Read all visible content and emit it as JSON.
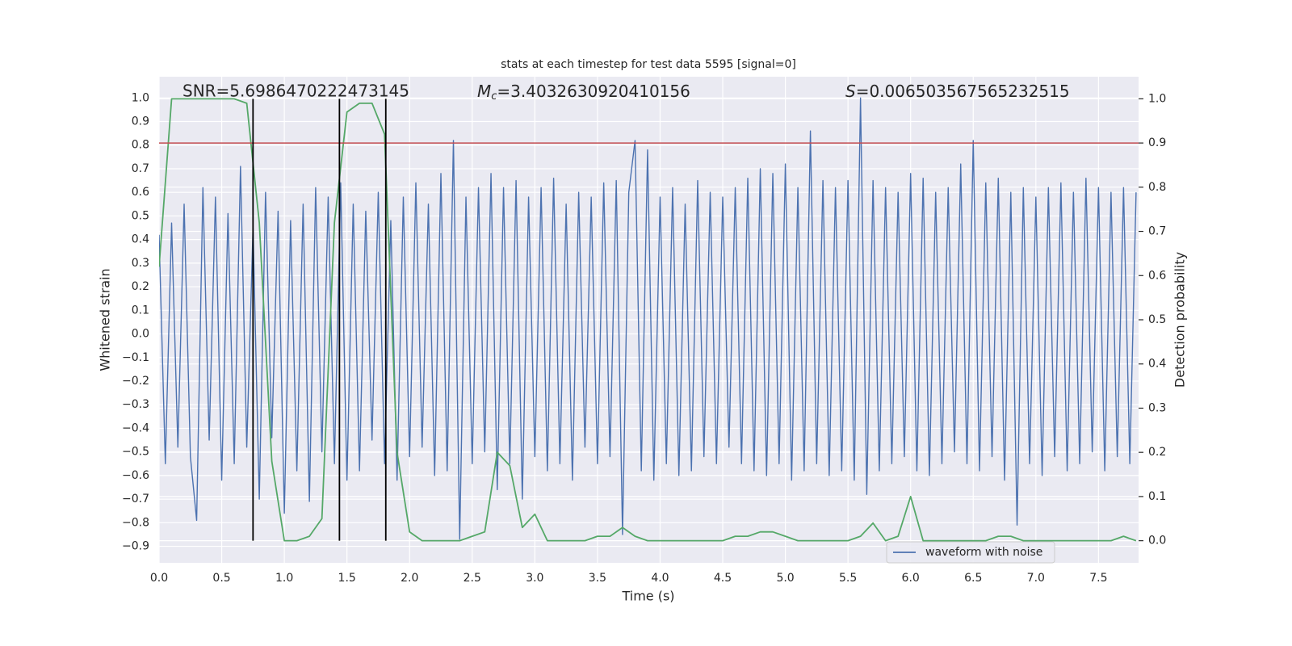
{
  "chart_data": {
    "type": "line",
    "title": "stats at each timestep for test data 5595 [signal=0]",
    "annotations": [
      {
        "text": "SNR=5.6986470222473145"
      },
      {
        "symbol": "M",
        "subscript": "c",
        "text": "=3.4032630920410156"
      },
      {
        "symbol": "S",
        "text": "=0.006503567565232515"
      }
    ],
    "xlabel": "Time (s)",
    "ylabel": "Whitened strain",
    "y2label": "Detection probability",
    "xlim": [
      0,
      7.82
    ],
    "ylim": [
      -0.97,
      1.09
    ],
    "y2lim": [
      -0.05,
      1.05
    ],
    "xticks": [
      {
        "value": 0,
        "label": "0.0"
      },
      {
        "value": 0.5,
        "label": "0.5"
      },
      {
        "value": 1,
        "label": "1.0"
      },
      {
        "value": 1.5,
        "label": "1.5"
      },
      {
        "value": 2,
        "label": "2.0"
      },
      {
        "value": 2.5,
        "label": "2.5"
      },
      {
        "value": 3,
        "label": "3.0"
      },
      {
        "value": 3.5,
        "label": "3.5"
      },
      {
        "value": 4,
        "label": "4.0"
      },
      {
        "value": 4.5,
        "label": "4.5"
      },
      {
        "value": 5,
        "label": "5.0"
      },
      {
        "value": 5.5,
        "label": "5.5"
      },
      {
        "value": 6,
        "label": "6.0"
      },
      {
        "value": 6.5,
        "label": "6.5"
      },
      {
        "value": 7,
        "label": "7.0"
      },
      {
        "value": 7.5,
        "label": "7.5"
      }
    ],
    "yticks": [
      {
        "value": -0.9,
        "label": "−0.9"
      },
      {
        "value": -0.8,
        "label": "−0.8"
      },
      {
        "value": -0.7,
        "label": "−0.7"
      },
      {
        "value": -0.6,
        "label": "−0.6"
      },
      {
        "value": -0.5,
        "label": "−0.5"
      },
      {
        "value": -0.4,
        "label": "−0.4"
      },
      {
        "value": -0.3,
        "label": "−0.3"
      },
      {
        "value": -0.2,
        "label": "−0.2"
      },
      {
        "value": -0.1,
        "label": "−0.1"
      },
      {
        "value": 0,
        "label": "0.0"
      },
      {
        "value": 0.1,
        "label": "0.1"
      },
      {
        "value": 0.2,
        "label": "0.2"
      },
      {
        "value": 0.3,
        "label": "0.3"
      },
      {
        "value": 0.4,
        "label": "0.4"
      },
      {
        "value": 0.5,
        "label": "0.5"
      },
      {
        "value": 0.6,
        "label": "0.6"
      },
      {
        "value": 0.7,
        "label": "0.7"
      },
      {
        "value": 0.8,
        "label": "0.8"
      },
      {
        "value": 0.9,
        "label": "0.9"
      },
      {
        "value": 1,
        "label": "1.0"
      }
    ],
    "y2ticks": [
      {
        "value": 0,
        "label": "0.0"
      },
      {
        "value": 0.1,
        "label": "0.1"
      },
      {
        "value": 0.2,
        "label": "0.2"
      },
      {
        "value": 0.3,
        "label": "0.3"
      },
      {
        "value": 0.4,
        "label": "0.4"
      },
      {
        "value": 0.5,
        "label": "0.5"
      },
      {
        "value": 0.6,
        "label": "0.6"
      },
      {
        "value": 0.7,
        "label": "0.7"
      },
      {
        "value": 0.8,
        "label": "0.8"
      },
      {
        "value": 0.9,
        "label": "0.9"
      },
      {
        "value": 1,
        "label": "1.0"
      }
    ],
    "grid": true,
    "legend": "lower right",
    "series": [
      {
        "name": "waveform with noise",
        "color": "#4c72b0",
        "x": [
          0,
          0.05,
          0.1,
          0.15,
          0.2,
          0.25,
          0.3,
          0.35,
          0.4,
          0.45,
          0.5,
          0.55,
          0.6,
          0.65,
          0.7,
          0.75,
          0.8,
          0.85,
          0.9,
          0.95,
          1,
          1.05,
          1.1,
          1.15,
          1.2,
          1.25,
          1.3,
          1.35,
          1.4,
          1.45,
          1.5,
          1.55,
          1.6,
          1.65,
          1.7,
          1.75,
          1.8,
          1.85,
          1.9,
          1.95,
          2,
          2.05,
          2.1,
          2.15,
          2.2,
          2.25,
          2.3,
          2.35,
          2.4,
          2.45,
          2.5,
          2.55,
          2.6,
          2.65,
          2.7,
          2.75,
          2.8,
          2.85,
          2.9,
          2.95,
          3,
          3.05,
          3.1,
          3.15,
          3.2,
          3.25,
          3.3,
          3.35,
          3.4,
          3.45,
          3.5,
          3.55,
          3.6,
          3.65,
          3.7,
          3.75,
          3.8,
          3.85,
          3.9,
          3.95,
          4,
          4.05,
          4.1,
          4.15,
          4.2,
          4.25,
          4.3,
          4.35,
          4.4,
          4.45,
          4.5,
          4.55,
          4.6,
          4.65,
          4.7,
          4.75,
          4.8,
          4.85,
          4.9,
          4.95,
          5,
          5.05,
          5.1,
          5.15,
          5.2,
          5.25,
          5.3,
          5.35,
          5.4,
          5.45,
          5.5,
          5.55,
          5.6,
          5.65,
          5.7,
          5.75,
          5.8,
          5.85,
          5.9,
          5.95,
          6,
          6.05,
          6.1,
          6.15,
          6.2,
          6.25,
          6.3,
          6.35,
          6.4,
          6.45,
          6.5,
          6.55,
          6.6,
          6.65,
          6.7,
          6.75,
          6.8,
          6.85,
          6.9,
          6.95,
          7,
          7.05,
          7.1,
          7.15,
          7.2,
          7.25,
          7.3,
          7.35,
          7.4,
          7.45,
          7.5,
          7.55,
          7.6,
          7.65,
          7.7,
          7.75,
          7.8
        ],
        "values": [
          0.42,
          -0.55,
          0.47,
          -0.48,
          0.55,
          -0.52,
          -0.79,
          0.62,
          -0.45,
          0.58,
          -0.62,
          0.51,
          -0.55,
          0.71,
          -0.48,
          0.45,
          -0.7,
          0.6,
          -0.44,
          0.52,
          -0.76,
          0.48,
          -0.58,
          0.55,
          -0.71,
          0.62,
          -0.5,
          0.58,
          -0.55,
          0.64,
          -0.62,
          0.55,
          -0.58,
          0.52,
          -0.45,
          0.6,
          -0.55,
          0.48,
          -0.62,
          0.58,
          -0.52,
          0.64,
          -0.48,
          0.55,
          -0.6,
          0.68,
          -0.58,
          0.82,
          -0.87,
          0.58,
          -0.55,
          0.62,
          -0.5,
          0.68,
          -0.66,
          0.62,
          -0.55,
          0.65,
          -0.7,
          0.58,
          -0.52,
          0.62,
          -0.58,
          0.66,
          -0.55,
          0.55,
          -0.62,
          0.6,
          -0.48,
          0.58,
          -0.55,
          0.64,
          -0.52,
          0.65,
          -0.85,
          0.6,
          0.82,
          -0.58,
          0.78,
          -0.62,
          0.58,
          -0.55,
          0.62,
          -0.6,
          0.55,
          -0.58,
          0.65,
          -0.52,
          0.6,
          -0.55,
          0.58,
          -0.48,
          0.62,
          -0.55,
          0.66,
          -0.58,
          0.7,
          -0.6,
          0.68,
          -0.55,
          0.72,
          -0.62,
          0.62,
          -0.58,
          0.86,
          -0.55,
          0.65,
          -0.6,
          0.62,
          -0.58,
          0.65,
          -0.62,
          1.0,
          -0.68,
          0.65,
          -0.58,
          0.62,
          -0.55,
          0.6,
          -0.52,
          0.68,
          -0.58,
          0.66,
          -0.6,
          0.6,
          -0.55,
          0.62,
          -0.5,
          0.72,
          -0.55,
          0.82,
          -0.58,
          0.64,
          -0.52,
          0.66,
          -0.62,
          0.6,
          -0.81,
          0.62,
          -0.55,
          0.58,
          -0.6,
          0.62,
          -0.52,
          0.64,
          -0.58,
          0.6,
          -0.55,
          0.66,
          -0.5,
          0.62,
          -0.58,
          0.6,
          -0.52,
          0.62,
          -0.55,
          0.6
        ]
      },
      {
        "color": "#55a868",
        "axis": "y2",
        "x": [
          0,
          0.1,
          0.2,
          0.3,
          0.4,
          0.5,
          0.6,
          0.7,
          0.8,
          0.9,
          1,
          1.1,
          1.2,
          1.3,
          1.4,
          1.5,
          1.6,
          1.7,
          1.8,
          1.9,
          2,
          2.1,
          2.2,
          2.3,
          2.4,
          2.5,
          2.6,
          2.7,
          2.8,
          2.9,
          3,
          3.1,
          3.2,
          3.3,
          3.4,
          3.5,
          3.6,
          3.7,
          3.8,
          3.9,
          4,
          4.1,
          4.2,
          4.3,
          4.4,
          4.5,
          4.6,
          4.7,
          4.8,
          4.9,
          5,
          5.1,
          5.2,
          5.3,
          5.4,
          5.5,
          5.6,
          5.7,
          5.8,
          5.9,
          6,
          6.1,
          6.2,
          6.3,
          6.4,
          6.5,
          6.6,
          6.7,
          6.8,
          6.9,
          7,
          7.1,
          7.2,
          7.3,
          7.4,
          7.5,
          7.6,
          7.7,
          7.8
        ],
        "values": [
          0.62,
          1.0,
          1.0,
          1.0,
          1.0,
          1.0,
          1.0,
          0.99,
          0.72,
          0.18,
          0.0,
          0.0,
          0.01,
          0.05,
          0.72,
          0.97,
          0.99,
          0.99,
          0.92,
          0.2,
          0.02,
          0.0,
          0.0,
          0.0,
          0.0,
          0.01,
          0.02,
          0.2,
          0.17,
          0.03,
          0.06,
          0.0,
          0.0,
          0.0,
          0.0,
          0.01,
          0.01,
          0.03,
          0.01,
          0.0,
          0.0,
          0.0,
          0.0,
          0.0,
          0.0,
          0.0,
          0.01,
          0.01,
          0.02,
          0.02,
          0.01,
          0.0,
          0.0,
          0.0,
          0.0,
          0.0,
          0.01,
          0.04,
          0.0,
          0.01,
          0.1,
          0.0,
          0.0,
          0.0,
          0.0,
          0.0,
          0.0,
          0.01,
          0.01,
          0.0,
          0.0,
          0.0,
          0.0,
          0.0,
          0.0,
          0.0,
          0.0,
          0.01,
          0.0
        ]
      }
    ],
    "threshold": {
      "value": 0.9,
      "axis": "y2",
      "color": "#c44e52"
    },
    "vlines": {
      "values": [
        0.75,
        1.44,
        1.81
      ],
      "color": "#000000"
    }
  }
}
